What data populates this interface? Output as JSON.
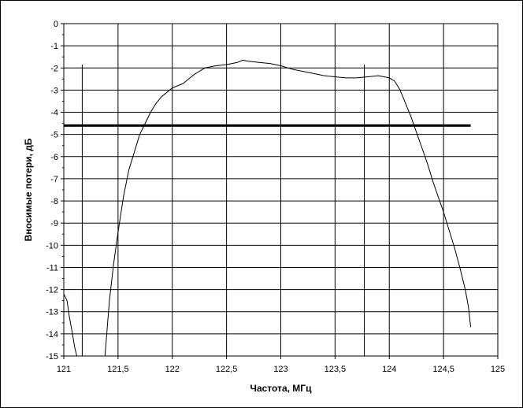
{
  "chart_data": {
    "type": "line",
    "xlabel": "Частота, МГц",
    "ylabel": "Вносимые потери, дБ",
    "xlim": [
      121,
      125
    ],
    "ylim": [
      -15,
      0
    ],
    "x_ticks": [
      "121",
      "121,5",
      "122",
      "122,5",
      "123",
      "123,5",
      "124",
      "124,5",
      "125"
    ],
    "y_ticks": [
      "0",
      "-1",
      "-2",
      "-3",
      "-4",
      "-5",
      "-6",
      "-7",
      "-8",
      "-9",
      "-10",
      "-11",
      "-12",
      "-13",
      "-14",
      "-15"
    ],
    "grid": true,
    "series": [
      {
        "style": "thin",
        "color": "#000000",
        "x": [
          121.0,
          121.03,
          121.05,
          121.08,
          121.1,
          121.12
        ],
        "y": [
          -12.2,
          -12.5,
          -13.2,
          -14.0,
          -14.6,
          -15.0
        ]
      },
      {
        "style": "thin",
        "color": "#000000",
        "x": [
          121.38,
          121.42,
          121.46,
          121.5,
          121.55,
          121.6,
          121.65,
          121.7,
          121.75,
          121.8,
          121.85,
          121.9,
          121.95,
          122.0,
          122.1,
          122.2,
          122.3,
          122.4,
          122.5,
          122.6,
          122.65,
          122.7,
          122.8,
          122.9,
          123.0,
          123.1,
          123.2,
          123.3,
          123.4,
          123.5,
          123.6,
          123.7,
          123.8,
          123.9,
          124.0,
          124.05,
          124.1,
          124.15,
          124.2,
          124.25,
          124.3,
          124.35,
          124.4,
          124.45,
          124.5,
          124.55,
          124.6,
          124.65,
          124.7,
          124.73,
          124.75
        ],
        "y": [
          -15.0,
          -12.5,
          -10.8,
          -9.4,
          -7.8,
          -6.6,
          -5.8,
          -5.0,
          -4.5,
          -4.0,
          -3.6,
          -3.3,
          -3.1,
          -2.9,
          -2.7,
          -2.3,
          -2.0,
          -1.9,
          -1.85,
          -1.75,
          -1.65,
          -1.7,
          -1.75,
          -1.8,
          -1.9,
          -2.05,
          -2.15,
          -2.25,
          -2.35,
          -2.4,
          -2.45,
          -2.45,
          -2.4,
          -2.35,
          -2.45,
          -2.6,
          -3.0,
          -3.6,
          -4.2,
          -4.9,
          -5.6,
          -6.3,
          -7.1,
          -7.8,
          -8.5,
          -9.3,
          -10.1,
          -11.0,
          -12.0,
          -12.8,
          -13.7
        ]
      },
      {
        "style": "thick",
        "color": "#000000",
        "x": [
          121.0,
          124.75
        ],
        "y": [
          -4.6,
          -4.6
        ]
      }
    ],
    "vlines": [
      {
        "x": 121.17,
        "y": [
          -15,
          -1.85
        ]
      },
      {
        "x": 123.77,
        "y": [
          -15,
          -1.85
        ]
      }
    ]
  }
}
